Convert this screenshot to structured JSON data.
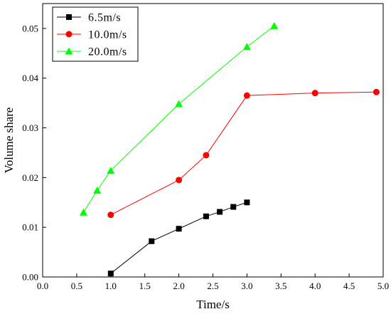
{
  "chart_data": {
    "type": "line",
    "xlabel": "Time/s",
    "ylabel": "Volume share",
    "xlim": [
      0.0,
      5.0
    ],
    "ylim": [
      0.0,
      0.055
    ],
    "xticks": [
      "0.0",
      "0.5",
      "1.0",
      "1.5",
      "2.0",
      "2.5",
      "3.0",
      "3.5",
      "4.0",
      "4.5",
      "5.0"
    ],
    "yticks": [
      "0.00",
      "0.01",
      "0.02",
      "0.03",
      "0.04",
      "0.05"
    ],
    "legend_position": "top-left",
    "grid": false,
    "series": [
      {
        "name": "6.5m/s",
        "color": "#000000",
        "marker": "square",
        "x": [
          1.0,
          1.6,
          2.0,
          2.4,
          2.6,
          2.8,
          3.0
        ],
        "y": [
          0.0007,
          0.0072,
          0.0097,
          0.0122,
          0.0131,
          0.0141,
          0.015
        ]
      },
      {
        "name": "10.0m/s",
        "color": "#ff0000",
        "marker": "circle",
        "x": [
          1.0,
          2.0,
          2.4,
          3.0,
          4.0,
          4.9
        ],
        "y": [
          0.0125,
          0.0195,
          0.0245,
          0.0365,
          0.037,
          0.0372
        ]
      },
      {
        "name": "20.0m/s",
        "color": "#00ff00",
        "marker": "triangle",
        "x": [
          0.6,
          0.8,
          1.0,
          2.0,
          3.0,
          3.4
        ],
        "y": [
          0.013,
          0.0174,
          0.0214,
          0.0348,
          0.0463,
          0.0505
        ]
      }
    ]
  }
}
